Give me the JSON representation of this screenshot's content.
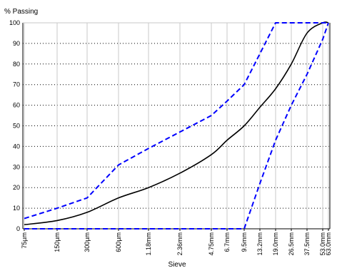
{
  "chart_data": {
    "type": "line",
    "ylabel": "% Passing",
    "xlabel": "Sieve",
    "categories": [
      "75µm",
      "150µm",
      "300µm",
      "600µm",
      "1.18mm",
      "2.36mm",
      "4.75mm",
      "6.7mm",
      "9.5mm",
      "13.2mm",
      "19.0mm",
      "26.5mm",
      "37.5mm",
      "53.0mm",
      "63.0mm"
    ],
    "ylim": [
      0,
      100
    ],
    "yticks": [
      0,
      10,
      20,
      30,
      40,
      50,
      60,
      70,
      80,
      90,
      100
    ],
    "grid": true,
    "series": [
      {
        "role": "gradation",
        "color": "#000000",
        "style": "solid",
        "values": [
          2,
          4,
          8,
          15,
          20,
          27,
          36,
          43,
          50,
          59,
          68,
          80,
          95,
          100,
          100
        ]
      },
      {
        "role": "upper-envelope",
        "color": "#0000ff",
        "style": "dashed",
        "values": [
          5,
          10,
          15,
          31,
          39,
          47,
          55,
          62,
          70,
          85,
          100,
          100,
          100,
          100,
          100
        ]
      },
      {
        "role": "lower-envelope",
        "color": "#0000ff",
        "style": "dashed",
        "values": [
          0,
          0,
          0,
          0,
          0,
          0,
          0,
          0,
          0,
          22,
          43,
          60,
          75,
          92,
          100
        ]
      }
    ]
  }
}
